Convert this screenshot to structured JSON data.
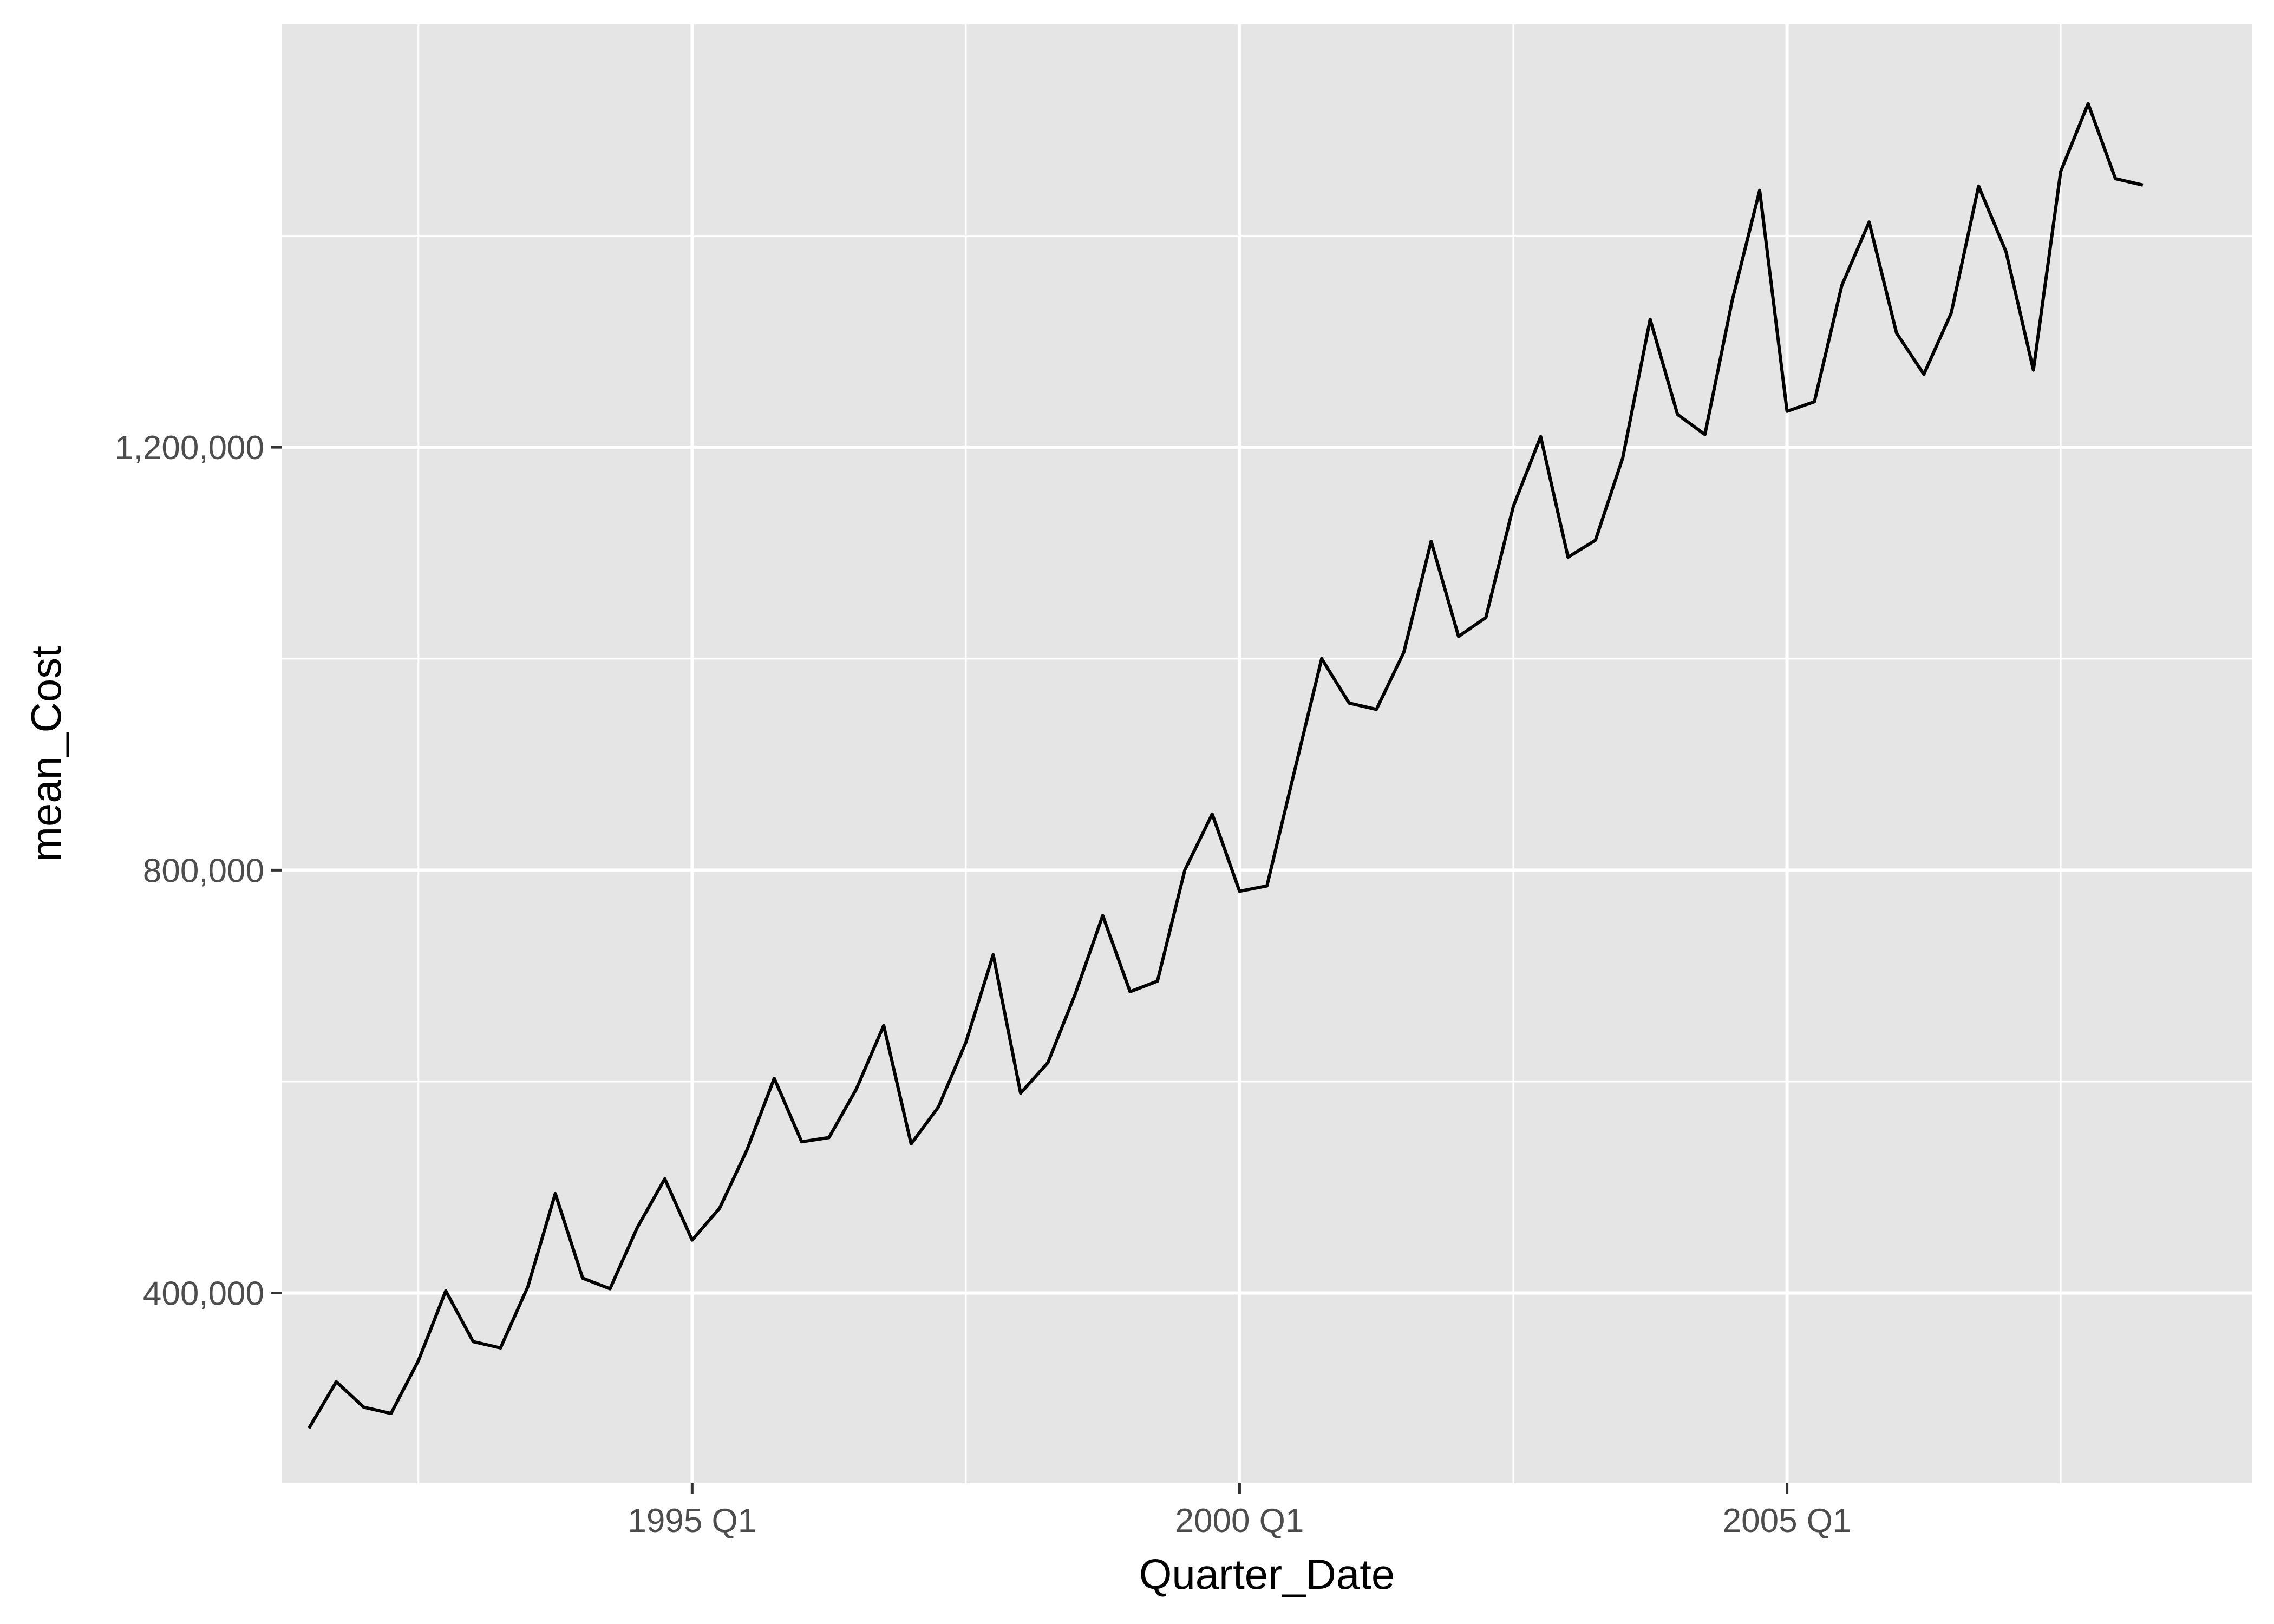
{
  "chart_data": {
    "type": "line",
    "xlabel": "Quarter_Date",
    "ylabel": "mean_Cost",
    "x_start": "1991 Q3",
    "x_tick_labels": [
      "1995 Q1",
      "2000 Q1",
      "2005 Q1"
    ],
    "y_tick_values": [
      400000,
      800000,
      1200000
    ],
    "y_tick_labels": [
      "400,000",
      "800,000",
      "1,200,000"
    ],
    "xlim": [
      "1991 Q2",
      "2009 Q2"
    ],
    "ylim": [
      220000,
      1600000
    ],
    "grid": true,
    "legend": "none",
    "series": [
      {
        "values": [
          272000,
          316000,
          292000,
          286000,
          336000,
          402000,
          354000,
          348000,
          406000,
          494000,
          414000,
          404000,
          462000,
          508000,
          450000,
          480000,
          535000,
          603000,
          543000,
          547000,
          593000,
          653000,
          541000,
          576000,
          637000,
          720000,
          589000,
          618000,
          683000,
          757000,
          685000,
          695000,
          800000,
          853000,
          780000,
          785000,
          893000,
          1000000,
          958000,
          952000,
          1006000,
          1111000,
          1021000,
          1039000,
          1144000,
          1210000,
          1096000,
          1112000,
          1190000,
          1321000,
          1231000,
          1212000,
          1339000,
          1443000,
          1234000,
          1243000,
          1353000,
          1413000,
          1308000,
          1269000,
          1327000,
          1447000,
          1385000,
          1273000,
          1461000,
          1525000,
          1454000,
          1448000
        ]
      }
    ]
  },
  "colors": {
    "panel_background": "#e5e5e5",
    "grid_major": "#ffffff",
    "line": "#000000",
    "tick_text": "#4d4d4d",
    "title_text": "#000000"
  }
}
